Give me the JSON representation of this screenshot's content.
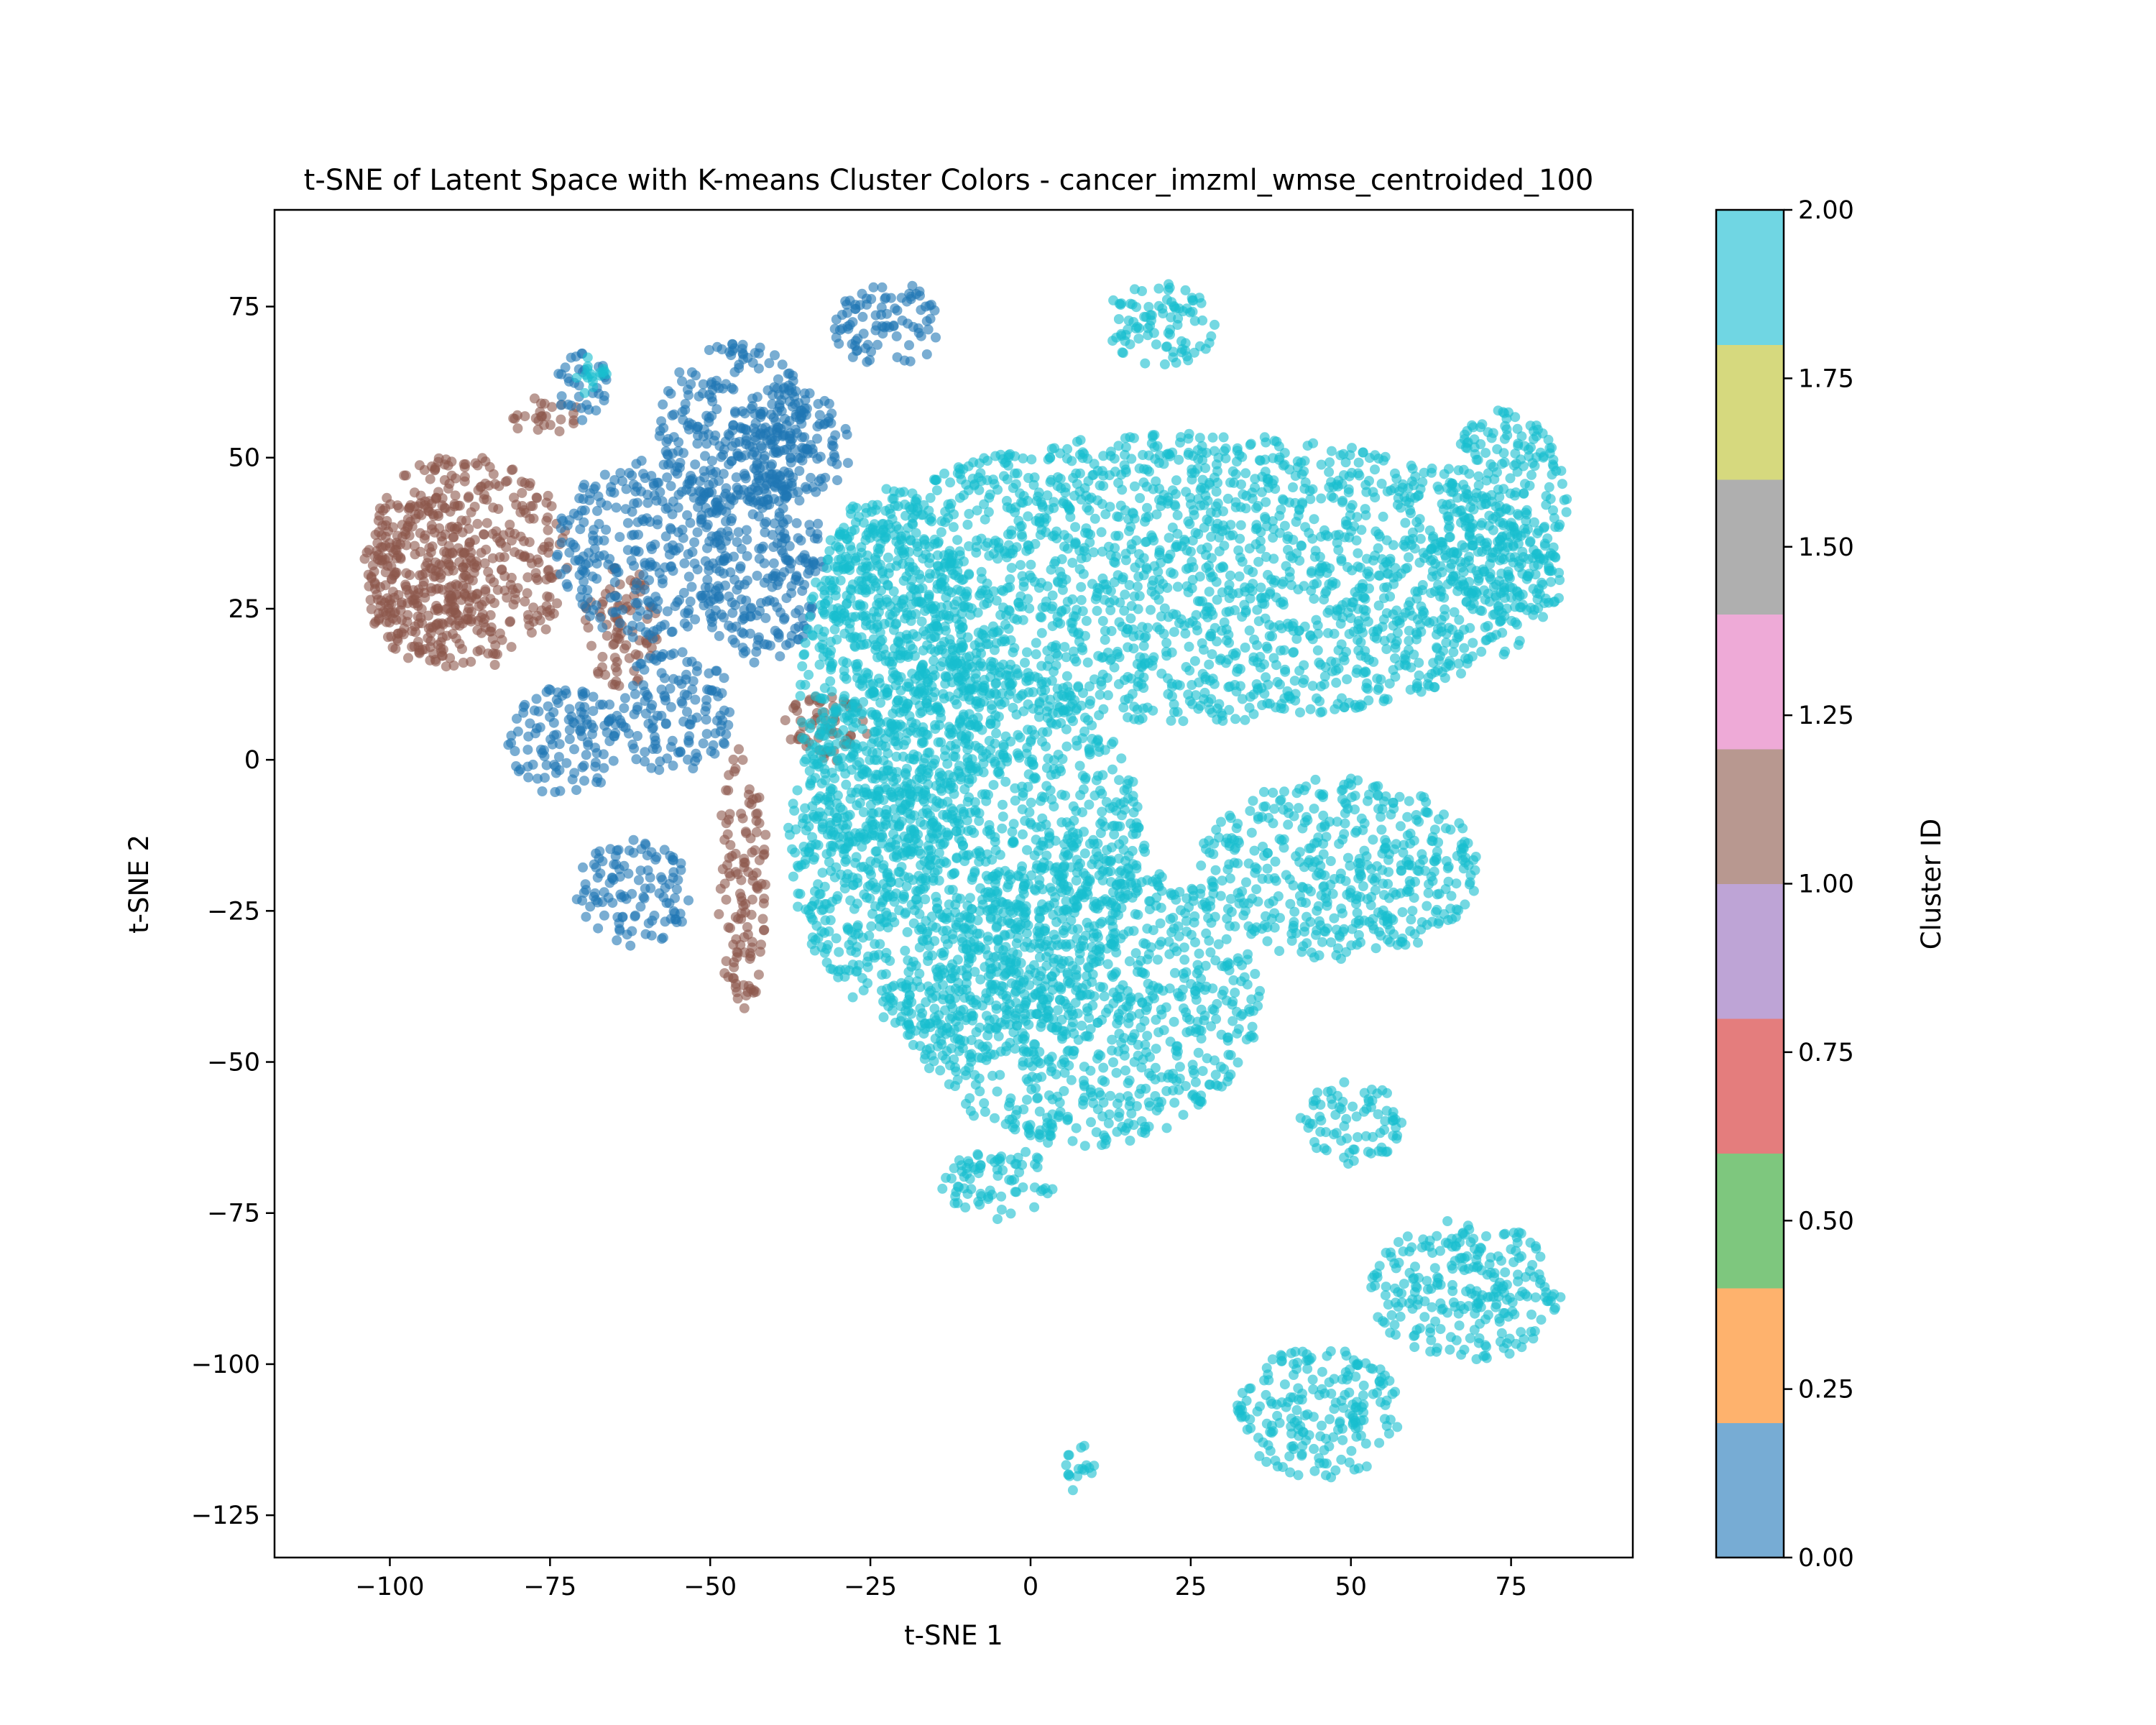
{
  "chart_data": {
    "type": "scatter",
    "title": "t-SNE of Latent Space with K-means Cluster Colors - cancer_imzml_wmse_centroided_100",
    "xlabel": "t-SNE 1",
    "ylabel": "t-SNE 2",
    "xlim": [
      -118,
      94
    ],
    "ylim": [
      -132,
      91
    ],
    "xticks": [
      -100,
      -75,
      -50,
      -25,
      0,
      25,
      50,
      75
    ],
    "xtick_labels": [
      "−100",
      "−75",
      "−50",
      "−25",
      "0",
      "25",
      "50",
      "75"
    ],
    "yticks": [
      -125,
      -100,
      -75,
      -50,
      -25,
      0,
      25,
      50,
      75
    ],
    "ytick_labels": [
      "−125",
      "−100",
      "−75",
      "−50",
      "−25",
      "0",
      "25",
      "50",
      "75"
    ],
    "grid": false,
    "legend": "none",
    "colorbar": {
      "label": "Cluster ID",
      "range": [
        0.0,
        2.0
      ],
      "ticks": [
        "0.00",
        "0.25",
        "0.50",
        "0.75",
        "1.00",
        "1.25",
        "1.50",
        "1.75",
        "2.00"
      ],
      "colors": [
        "#77acd4",
        "#feb26d",
        "#7ec77e",
        "#e47d7d",
        "#bea4d6",
        "#b89890",
        "#eeaad7",
        "#afafaf",
        "#d6d97e",
        "#70d6e3"
      ]
    },
    "series": [
      {
        "cluster_id": 0,
        "color": "#1f77b4",
        "regions": [
          {
            "cx": -60,
            "cy": 35,
            "rx": 14,
            "ry": 15
          },
          {
            "cx": -46,
            "cy": 55,
            "rx": 12,
            "ry": 14
          },
          {
            "cx": -22,
            "cy": 72,
            "rx": 9,
            "ry": 7
          },
          {
            "cx": -70,
            "cy": 62,
            "rx": 4,
            "ry": 6
          },
          {
            "cx": -73,
            "cy": 3,
            "rx": 9,
            "ry": 9
          },
          {
            "cx": -56,
            "cy": 8,
            "rx": 10,
            "ry": 10
          },
          {
            "cx": -62,
            "cy": -22,
            "rx": 9,
            "ry": 9
          },
          {
            "cx": -42,
            "cy": 32,
            "rx": 10,
            "ry": 16
          },
          {
            "cx": -38,
            "cy": 52,
            "rx": 10,
            "ry": 10
          }
        ]
      },
      {
        "cluster_id": 1,
        "color": "#8c564b",
        "regions": [
          {
            "cx": -88,
            "cy": 33,
            "rx": 16,
            "ry": 18
          },
          {
            "cx": -95,
            "cy": 30,
            "rx": 9,
            "ry": 14
          },
          {
            "cx": -76,
            "cy": 57,
            "rx": 6,
            "ry": 3
          },
          {
            "cx": -45,
            "cy": -20,
            "rx": 4,
            "ry": 22
          },
          {
            "cx": -32,
            "cy": 5,
            "rx": 7,
            "ry": 6
          },
          {
            "cx": -64,
            "cy": 22,
            "rx": 6,
            "ry": 10
          }
        ]
      },
      {
        "cluster_id": 2,
        "color": "#17becf",
        "regions": [
          {
            "cx": 25,
            "cy": 30,
            "rx": 58,
            "ry": 24
          },
          {
            "cx": -10,
            "cy": -15,
            "rx": 28,
            "ry": 32
          },
          {
            "cx": 8,
            "cy": -40,
            "rx": 28,
            "ry": 24
          },
          {
            "cx": 48,
            "cy": -18,
            "rx": 22,
            "ry": 15
          },
          {
            "cx": 20,
            "cy": 72,
            "rx": 9,
            "ry": 7
          },
          {
            "cx": -22,
            "cy": 10,
            "rx": 14,
            "ry": 35
          },
          {
            "cx": -5,
            "cy": -70,
            "rx": 9,
            "ry": 6
          },
          {
            "cx": 50,
            "cy": -60,
            "rx": 8,
            "ry": 7
          },
          {
            "cx": 68,
            "cy": -88,
            "rx": 15,
            "ry": 12
          },
          {
            "cx": 45,
            "cy": -108,
            "rx": 13,
            "ry": 11
          },
          {
            "cx": 7,
            "cy": -117,
            "rx": 3,
            "ry": 4
          },
          {
            "cx": 74,
            "cy": 40,
            "rx": 10,
            "ry": 18
          },
          {
            "cx": -68,
            "cy": 63,
            "rx": 3,
            "ry": 4
          }
        ]
      }
    ]
  }
}
